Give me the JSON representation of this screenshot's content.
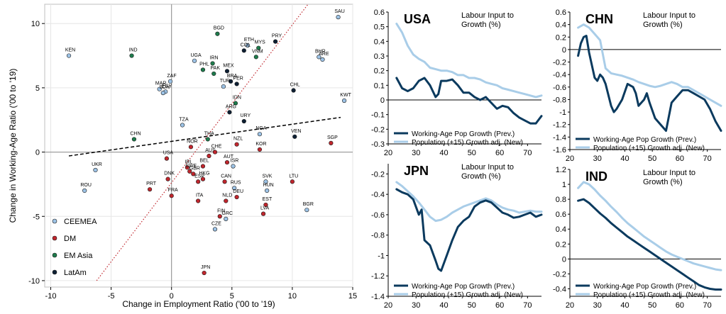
{
  "colors": {
    "ceemea": "#9dc3e6",
    "dm": "#c0262d",
    "emasia": "#1e7b4c",
    "latam": "#0d1f33",
    "dark_line": "#0b3a5e",
    "light_line": "#a9cde8",
    "fit": "#000000",
    "diag": "#c0262d"
  },
  "chart_data": [
    {
      "type": "scatter",
      "title": "",
      "xlabel": "Change in Employment Ratio ('00 to '19)",
      "ylabel": "Change in Working-Age Ratio ('00 to '19)",
      "xlim": [
        -10.5,
        15
      ],
      "ylim": [
        -10.5,
        11.5
      ],
      "xticks": [
        -10,
        -5,
        0,
        5,
        10,
        15
      ],
      "yticks": [
        -10,
        -5,
        0,
        5,
        10
      ],
      "grid": true,
      "legend": [
        "CEEMEA",
        "DM",
        "EM Asia",
        "LatAm"
      ],
      "legend_keys": [
        "ceemea",
        "dm",
        "emasia",
        "latam"
      ],
      "trend_line": {
        "x": [
          -8.5,
          14
        ],
        "y": [
          -0.3,
          2.7
        ]
      },
      "diagonal_line": {
        "x": [
          -6.2,
          11.3
        ],
        "y": [
          -10,
          11.5
        ]
      },
      "points": [
        {
          "label": "KEN",
          "g": "ceemea",
          "x": -8.5,
          "y": 7.5
        },
        {
          "label": "IND",
          "g": "emasia",
          "x": -3.3,
          "y": 7.5
        },
        {
          "label": "BGD",
          "g": "emasia",
          "x": 3.8,
          "y": 9.2
        },
        {
          "label": "UGA",
          "g": "ceemea",
          "x": 1.9,
          "y": 7.1
        },
        {
          "label": "IRN",
          "g": "emasia",
          "x": 3.4,
          "y": 6.9
        },
        {
          "label": "PHL",
          "g": "emasia",
          "x": 2.6,
          "y": 6.4
        },
        {
          "label": "MAR",
          "g": "ceemea",
          "x": -1.0,
          "y": 4.9
        },
        {
          "label": "ZAF",
          "g": "ceemea",
          "x": -0.1,
          "y": 5.5
        },
        {
          "label": "EGY",
          "g": "ceemea",
          "x": -0.5,
          "y": 4.7
        },
        {
          "label": "SDN",
          "g": "ceemea",
          "x": -0.7,
          "y": 4.6
        },
        {
          "label": "PAK",
          "g": "emasia",
          "x": 3.5,
          "y": 6.1
        },
        {
          "label": "MEX",
          "g": "latam",
          "x": 4.6,
          "y": 6.3
        },
        {
          "label": "BRA",
          "g": "latam",
          "x": 4.9,
          "y": 5.5
        },
        {
          "label": "TUR",
          "g": "ceemea",
          "x": 4.3,
          "y": 5.1
        },
        {
          "label": "PER",
          "g": "latam",
          "x": 5.4,
          "y": 5.3
        },
        {
          "label": "ETH",
          "g": "ceemea",
          "x": 6.3,
          "y": 8.3
        },
        {
          "label": "COL",
          "g": "latam",
          "x": 6.0,
          "y": 7.9
        },
        {
          "label": "PRY",
          "g": "latam",
          "x": 8.6,
          "y": 8.6
        },
        {
          "label": "MYS",
          "g": "emasia",
          "x": 7.2,
          "y": 8.1
        },
        {
          "label": "VNM",
          "g": "emasia",
          "x": 7.0,
          "y": 7.4
        },
        {
          "label": "SAU",
          "g": "ceemea",
          "x": 13.8,
          "y": 10.5
        },
        {
          "label": "BHR",
          "g": "ceemea",
          "x": 12.2,
          "y": 7.4
        },
        {
          "label": "ARE",
          "g": "ceemea",
          "x": 12.5,
          "y": 7.2
        },
        {
          "label": "CHL",
          "g": "latam",
          "x": 10.1,
          "y": 4.8
        },
        {
          "label": "KWT",
          "g": "ceemea",
          "x": 14.3,
          "y": 4.0
        },
        {
          "label": "IDN",
          "g": "emasia",
          "x": 5.3,
          "y": 3.8
        },
        {
          "label": "ARG",
          "g": "latam",
          "x": 4.8,
          "y": 3.1
        },
        {
          "label": "TZA",
          "g": "ceemea",
          "x": 0.9,
          "y": 2.1
        },
        {
          "label": "URY",
          "g": "latam",
          "x": 6.0,
          "y": 2.4
        },
        {
          "label": "CHN",
          "g": "emasia",
          "x": -3.1,
          "y": 1.0
        },
        {
          "label": "THA",
          "g": "emasia",
          "x": 3.0,
          "y": 1.0
        },
        {
          "label": "NZL",
          "g": "dm",
          "x": 5.4,
          "y": 0.6
        },
        {
          "label": "NGA",
          "g": "ceemea",
          "x": 7.3,
          "y": 1.4
        },
        {
          "label": "VEN",
          "g": "latam",
          "x": 10.2,
          "y": 1.2
        },
        {
          "label": "SGP",
          "g": "dm",
          "x": 13.2,
          "y": 0.7
        },
        {
          "label": "KOR",
          "g": "dm",
          "x": 7.3,
          "y": 0.2
        },
        {
          "label": "NOR",
          "g": "dm",
          "x": 1.6,
          "y": 0.4
        },
        {
          "label": "USA",
          "g": "dm",
          "x": -0.4,
          "y": -0.5
        },
        {
          "label": "AUS",
          "g": "dm",
          "x": 3.1,
          "y": -0.3
        },
        {
          "label": "CHE",
          "g": "dm",
          "x": 3.6,
          "y": 0.0
        },
        {
          "label": "AUT",
          "g": "dm",
          "x": 4.6,
          "y": -0.8
        },
        {
          "label": "ISR",
          "g": "ceemea",
          "x": 5.1,
          "y": -1.1
        },
        {
          "label": "IRL",
          "g": "dm",
          "x": 1.3,
          "y": -1.2
        },
        {
          "label": "BEL",
          "g": "dm",
          "x": 2.6,
          "y": -1.1
        },
        {
          "label": "SWE",
          "g": "dm",
          "x": 1.5,
          "y": -1.5
        },
        {
          "label": "GBR",
          "g": "dm",
          "x": 1.8,
          "y": -1.7
        },
        {
          "label": "UKR",
          "g": "ceemea",
          "x": -6.3,
          "y": -1.4
        },
        {
          "label": "DNK",
          "g": "dm",
          "x": -0.3,
          "y": -2.1
        },
        {
          "label": "ESP",
          "g": "dm",
          "x": 2.2,
          "y": -2.3
        },
        {
          "label": "HKG",
          "g": "dm",
          "x": 2.6,
          "y": -2.1
        },
        {
          "label": "CAN",
          "g": "dm",
          "x": 4.4,
          "y": -2.3
        },
        {
          "label": "SVK",
          "g": "ceemea",
          "x": 7.8,
          "y": -2.3
        },
        {
          "label": "LTU",
          "g": "dm",
          "x": 10.0,
          "y": -2.3
        },
        {
          "label": "RUS",
          "g": "ceemea",
          "x": 5.2,
          "y": -2.8
        },
        {
          "label": "HUN",
          "g": "ceemea",
          "x": 7.9,
          "y": -3.0
        },
        {
          "label": "PRT",
          "g": "dm",
          "x": -1.8,
          "y": -2.9
        },
        {
          "label": "ROU",
          "g": "ceemea",
          "x": -7.2,
          "y": -3.0
        },
        {
          "label": "FRA",
          "g": "dm",
          "x": 0.0,
          "y": -3.4
        },
        {
          "label": "ITA",
          "g": "dm",
          "x": 2.2,
          "y": -3.8
        },
        {
          "label": "NLD",
          "g": "dm",
          "x": 4.5,
          "y": -3.8
        },
        {
          "label": "DEU",
          "g": "dm",
          "x": 5.4,
          "y": -3.5
        },
        {
          "label": "EST",
          "g": "dm",
          "x": 7.8,
          "y": -4.1
        },
        {
          "label": "FIN",
          "g": "dm",
          "x": 4.0,
          "y": -5.0
        },
        {
          "label": "LVA",
          "g": "dm",
          "x": 7.6,
          "y": -4.8
        },
        {
          "label": "BGR",
          "g": "ceemea",
          "x": 11.2,
          "y": -4.5
        },
        {
          "label": "GRC",
          "g": "ceemea",
          "x": 4.5,
          "y": -5.2
        },
        {
          "label": "CZE",
          "g": "ceemea",
          "x": 3.6,
          "y": -6.0
        },
        {
          "label": "JPN",
          "g": "dm",
          "x": 2.7,
          "y": -9.4
        }
      ]
    },
    {
      "type": "line",
      "country": "USA",
      "title": "Labour Input to Growth (%)",
      "xlim": [
        20,
        75
      ],
      "ylim": [
        -0.3,
        0.6
      ],
      "xticks": [
        20,
        30,
        40,
        50,
        60,
        70
      ],
      "yticks": [
        -0.3,
        -0.2,
        -0.1,
        0,
        0.1,
        0.2,
        0.3,
        0.4,
        0.5,
        0.6
      ],
      "legend": "bottom-left",
      "series": [
        {
          "name": "Working-Age Pop Growth (Prev.)",
          "style": "dark",
          "x": [
            23,
            25,
            27,
            29,
            31,
            33,
            35,
            37,
            38,
            39,
            41,
            43,
            45,
            47,
            49,
            51,
            53,
            55,
            57,
            59,
            61,
            63,
            65,
            67,
            69,
            71,
            73,
            75
          ],
          "y": [
            0.15,
            0.08,
            0.06,
            0.08,
            0.13,
            0.15,
            0.1,
            0.02,
            0.04,
            0.13,
            0.13,
            0.14,
            0.1,
            0.05,
            0.05,
            0.02,
            0.0,
            0.02,
            -0.02,
            -0.06,
            -0.04,
            -0.05,
            -0.09,
            -0.12,
            -0.14,
            -0.16,
            -0.16,
            -0.11
          ]
        },
        {
          "name": "Population (+15) Growth adj. (New)",
          "style": "light",
          "x": [
            23,
            25,
            27,
            29,
            31,
            33,
            35,
            37,
            39,
            41,
            43,
            45,
            47,
            49,
            51,
            53,
            55,
            57,
            59,
            61,
            63,
            65,
            67,
            69,
            71,
            73,
            75
          ],
          "y": [
            0.52,
            0.46,
            0.37,
            0.31,
            0.28,
            0.26,
            0.22,
            0.21,
            0.2,
            0.2,
            0.19,
            0.17,
            0.17,
            0.15,
            0.15,
            0.14,
            0.12,
            0.11,
            0.1,
            0.08,
            0.07,
            0.06,
            0.05,
            0.04,
            0.03,
            0.02,
            0.03
          ]
        }
      ]
    },
    {
      "type": "line",
      "country": "CHN",
      "title": "Labour Input to Growth (%)",
      "xlim": [
        20,
        75
      ],
      "ylim": [
        -1.6,
        0.6
      ],
      "xticks": [
        20,
        30,
        40,
        50,
        60,
        70
      ],
      "yticks": [
        -1.6,
        -1.4,
        -1.2,
        -1.0,
        -0.8,
        -0.6,
        -0.4,
        -0.2,
        0,
        0.2,
        0.4,
        0.6
      ],
      "legend": "bottom-left",
      "series": [
        {
          "name": "Working-Age Pop Growth (Prev.)",
          "style": "dark",
          "x": [
            23,
            24,
            25,
            26,
            27,
            29,
            30,
            31,
            32,
            33,
            35,
            36,
            37,
            39,
            41,
            43,
            44,
            45,
            47,
            48,
            49,
            51,
            53,
            55,
            57,
            59,
            61,
            63,
            65,
            67,
            69,
            71,
            73,
            75
          ],
          "y": [
            -0.1,
            0.1,
            0.2,
            0.22,
            -0.05,
            -0.45,
            -0.5,
            -0.4,
            -0.45,
            -0.55,
            -0.9,
            -1.0,
            -0.95,
            -0.8,
            -0.55,
            -0.6,
            -0.7,
            -0.9,
            -0.8,
            -0.7,
            -0.85,
            -1.1,
            -1.2,
            -1.3,
            -0.85,
            -0.75,
            -0.65,
            -0.65,
            -0.7,
            -0.75,
            -0.8,
            -0.95,
            -1.15,
            -1.3
          ]
        },
        {
          "name": "Population (+15) Growth adj. (New)",
          "style": "light",
          "x": [
            23,
            25,
            27,
            29,
            31,
            33,
            35,
            37,
            39,
            41,
            43,
            45,
            47,
            49,
            51,
            53,
            55,
            57,
            59,
            61,
            63,
            65,
            67,
            69,
            71,
            73,
            75
          ],
          "y": [
            0.35,
            0.4,
            0.35,
            0.25,
            0.15,
            -0.3,
            -0.38,
            -0.4,
            -0.42,
            -0.45,
            -0.48,
            -0.52,
            -0.55,
            -0.58,
            -0.6,
            -0.58,
            -0.55,
            -0.52,
            -0.55,
            -0.6,
            -0.6,
            -0.65,
            -0.7,
            -0.75,
            -0.8,
            -0.85,
            -0.9
          ]
        }
      ]
    },
    {
      "type": "line",
      "country": "JPN",
      "title": "Labour Input to Growth (%)",
      "xlim": [
        20,
        75
      ],
      "ylim": [
        -1.4,
        -0.1
      ],
      "xticks": [
        20,
        30,
        40,
        50,
        60,
        70
      ],
      "yticks": [
        -1.4,
        -1.2,
        -1.0,
        -0.8,
        -0.6,
        -0.4,
        -0.2
      ],
      "legend": "bottom-left",
      "series": [
        {
          "name": "Working-Age Pop Growth (Prev.)",
          "style": "dark",
          "x": [
            23,
            25,
            27,
            29,
            31,
            32,
            33,
            35,
            37,
            38,
            39,
            41,
            43,
            45,
            47,
            49,
            51,
            53,
            55,
            57,
            59,
            61,
            63,
            65,
            67,
            69,
            71,
            73,
            75
          ],
          "y": [
            -0.35,
            -0.38,
            -0.4,
            -0.45,
            -0.6,
            -0.55,
            -0.85,
            -0.9,
            -1.05,
            -1.13,
            -1.15,
            -1.0,
            -0.85,
            -0.72,
            -0.66,
            -0.62,
            -0.52,
            -0.48,
            -0.46,
            -0.48,
            -0.53,
            -0.58,
            -0.6,
            -0.63,
            -0.62,
            -0.6,
            -0.58,
            -0.62,
            -0.6
          ]
        },
        {
          "name": "Population (+15) Growth adj. (New)",
          "style": "light",
          "x": [
            23,
            25,
            27,
            29,
            31,
            33,
            35,
            37,
            39,
            41,
            43,
            45,
            47,
            49,
            51,
            53,
            55,
            57,
            59,
            61,
            63,
            65,
            67,
            69,
            71,
            73,
            75
          ],
          "y": [
            -0.28,
            -0.32,
            -0.37,
            -0.42,
            -0.48,
            -0.55,
            -0.62,
            -0.66,
            -0.65,
            -0.62,
            -0.58,
            -0.55,
            -0.52,
            -0.5,
            -0.48,
            -0.46,
            -0.44,
            -0.46,
            -0.5,
            -0.53,
            -0.55,
            -0.56,
            -0.58,
            -0.57,
            -0.56,
            -0.57,
            -0.57
          ]
        }
      ]
    },
    {
      "type": "line",
      "country": "IND",
      "title": "Labour Input to Growth (%)",
      "xlim": [
        20,
        75
      ],
      "ylim": [
        -0.5,
        1.2
      ],
      "xticks": [
        20,
        30,
        40,
        50,
        60,
        70
      ],
      "yticks": [
        -0.4,
        -0.2,
        0,
        0.2,
        0.4,
        0.6,
        0.8,
        1.0,
        1.2
      ],
      "legend": "bottom-left",
      "series": [
        {
          "name": "Working-Age Pop Growth (Prev.)",
          "style": "dark",
          "x": [
            23,
            25,
            27,
            29,
            31,
            33,
            35,
            37,
            39,
            41,
            43,
            45,
            47,
            49,
            51,
            53,
            55,
            57,
            59,
            61,
            63,
            65,
            67,
            69,
            71,
            73,
            75
          ],
          "y": [
            0.78,
            0.8,
            0.75,
            0.68,
            0.61,
            0.55,
            0.48,
            0.42,
            0.36,
            0.3,
            0.25,
            0.2,
            0.15,
            0.1,
            0.05,
            0.0,
            -0.05,
            -0.1,
            -0.15,
            -0.2,
            -0.25,
            -0.3,
            -0.35,
            -0.38,
            -0.4,
            -0.41,
            -0.41
          ]
        },
        {
          "name": "Population (+15) Growth adj. (New)",
          "style": "light",
          "x": [
            23,
            25,
            27,
            29,
            31,
            33,
            35,
            37,
            39,
            41,
            43,
            45,
            47,
            49,
            51,
            53,
            55,
            57,
            59,
            61,
            63,
            65,
            67,
            69,
            71,
            73,
            75
          ],
          "y": [
            0.95,
            1.03,
            1.0,
            0.93,
            0.85,
            0.78,
            0.7,
            0.63,
            0.55,
            0.48,
            0.42,
            0.36,
            0.3,
            0.25,
            0.2,
            0.15,
            0.1,
            0.06,
            0.03,
            0.0,
            -0.03,
            -0.06,
            -0.08,
            -0.1,
            -0.12,
            -0.14,
            -0.15
          ]
        }
      ]
    }
  ]
}
